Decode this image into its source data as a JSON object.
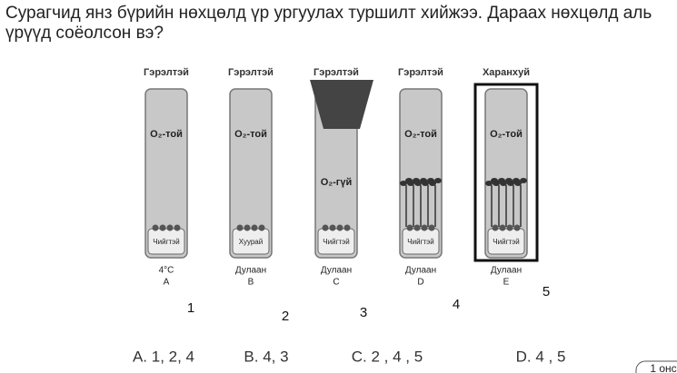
{
  "question": "Сурагчид янз бүрийн нөхцөлд үр ургуулах туршилт хийжээ. Дараах нөхцөлд аль үрүүд соёолсон вэ?",
  "tubes": [
    {
      "top": "Гэрэлтэй",
      "inner": "O₂-той",
      "bottom": "Чийгтэй",
      "condition": "4°C",
      "letter": "A",
      "number": "1"
    },
    {
      "top": "Гэрэлтэй",
      "inner": "O₂-той",
      "bottom": "Хуурай",
      "condition": "Дулаан",
      "letter": "B",
      "number": "2"
    },
    {
      "top": "Гэрэлтэй",
      "inner": "O₂-гүй",
      "bottom": "Чийгтэй",
      "condition": "Дулаан",
      "letter": "C",
      "number": "3"
    },
    {
      "top": "Гэрэлтэй",
      "inner": "O₂-той",
      "bottom": "Чийгтэй",
      "condition": "Дулаан",
      "letter": "D",
      "number": "4"
    },
    {
      "top": "Харанхуй",
      "inner": "O₂-той",
      "bottom": "Чийгтэй",
      "condition": "Дулаан",
      "letter": "E",
      "number": "5"
    }
  ],
  "options": [
    "A. 1, 2, 4",
    "B. 4,  3",
    "C. 2 , 4 , 5",
    "D. 4 , 5"
  ],
  "button": "1 онс"
}
